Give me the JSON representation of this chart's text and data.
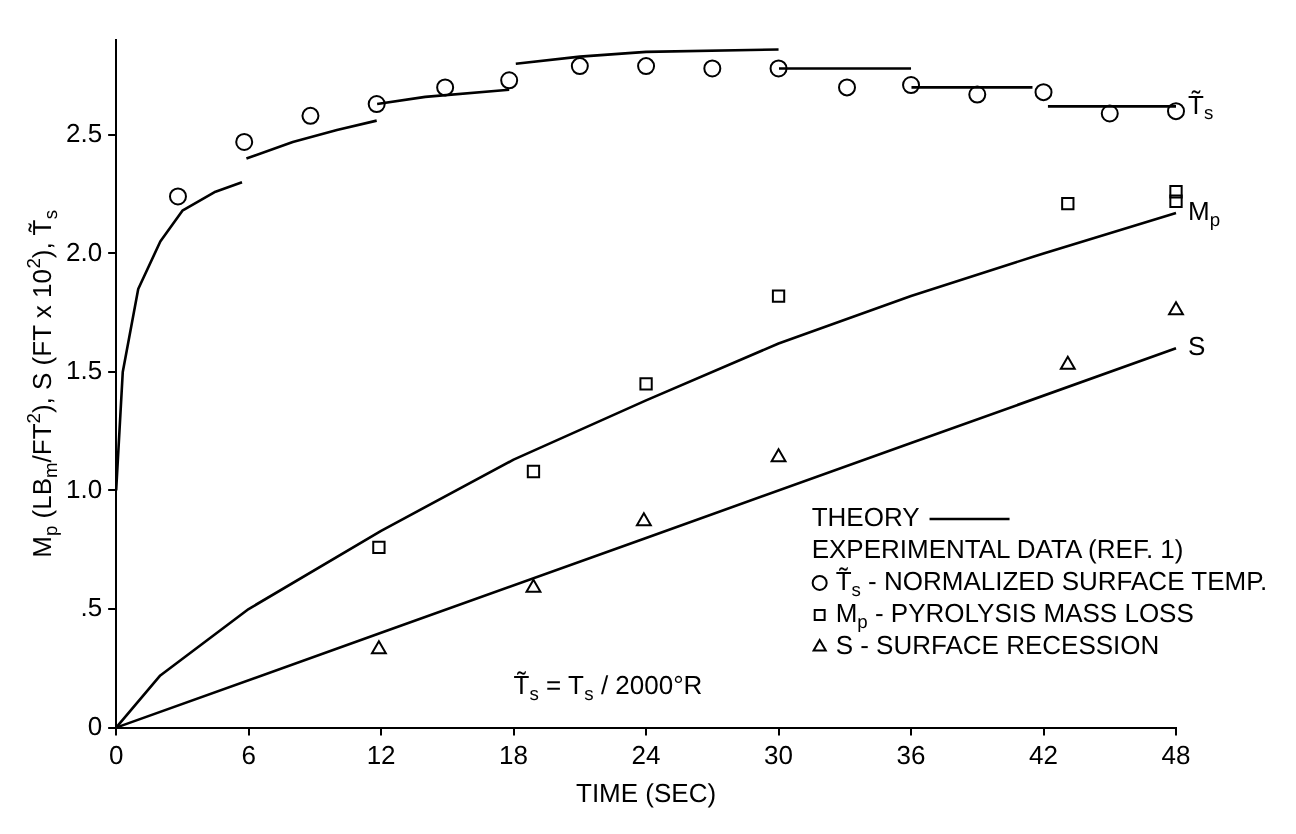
{
  "chart_data": {
    "type": "scatter",
    "xlabel": "TIME (SEC)",
    "ylabel": "M$_{p}$ (LB$_{m}$/FT$^{2}$), S (FT x 10$^{2}$), T̃$_{s}$",
    "legend_title": "EXPERIMENTAL DATA (REF. 1)",
    "xlim": [
      0,
      48
    ],
    "xticks": [
      0,
      6,
      12,
      18,
      24,
      30,
      36,
      42,
      48
    ],
    "ylim": [
      0,
      2.9
    ],
    "yticks": [
      0,
      {
        "value": 0.5,
        "label": ".5"
      },
      {
        "value": 1,
        "label": "1.0"
      },
      1.5,
      {
        "value": 2,
        "label": "2.0"
      },
      2.5
    ],
    "grid": false,
    "legend": "bottom right",
    "series": [
      {
        "type": "line",
        "name": "T̃$_{s}$",
        "color": "#000000",
        "marker": "none",
        "x": [
          0,
          0.3,
          1,
          2,
          3,
          4.5,
          5.7,
          5.8,
          5.9,
          8,
          10,
          11.8,
          11.81,
          11.82,
          14,
          17.8,
          17.95,
          18.1,
          21,
          24,
          30,
          30.01,
          30.02,
          36,
          36.01,
          36.02,
          41.5,
          41.8,
          42.2,
          48
        ],
        "values": [
          1.0,
          1.5,
          1.85,
          2.05,
          2.18,
          2.26,
          2.3,
          null,
          2.4,
          2.47,
          2.52,
          2.56,
          null,
          2.63,
          2.66,
          2.69,
          null,
          2.8,
          2.83,
          2.85,
          2.86,
          null,
          2.78,
          2.78,
          null,
          2.7,
          2.7,
          null,
          2.62,
          2.62
        ]
      },
      {
        "type": "line",
        "name": "M$_{p}$",
        "color": "#000000",
        "marker": "none",
        "x": [
          0,
          2,
          6,
          12,
          18,
          24,
          30,
          36,
          42,
          48
        ],
        "values": [
          0,
          0.22,
          0.5,
          0.83,
          1.13,
          1.38,
          1.62,
          1.82,
          2.0,
          2.17
        ]
      },
      {
        "type": "line",
        "name": "S",
        "color": "#000000",
        "marker": "none",
        "x": [
          0,
          12,
          24,
          36,
          48
        ],
        "values": [
          0,
          0.4,
          0.8,
          1.2,
          1.6
        ]
      },
      {
        "type": "scatter",
        "name": "T̃$_{s}$ - NORMALIZED SURFACE TEMP.",
        "color": "#000000",
        "marker": "circle",
        "x": [
          2.8,
          5.8,
          8.8,
          11.8,
          14.9,
          17.8,
          21,
          24,
          27,
          30,
          33.1,
          36,
          39,
          42,
          45,
          48
        ],
        "values": [
          2.24,
          2.47,
          2.58,
          2.63,
          2.7,
          2.73,
          2.79,
          2.79,
          2.78,
          2.78,
          2.7,
          2.71,
          2.67,
          2.68,
          2.59,
          2.6
        ]
      },
      {
        "type": "scatter",
        "name": "M$_{p}$ - PYROLYSIS MASS LOSS",
        "color": "#000000",
        "marker": "square",
        "x": [
          11.9,
          18.9,
          24,
          30,
          43.1,
          48,
          48
        ],
        "values": [
          0.76,
          1.08,
          1.45,
          1.82,
          2.21,
          2.26,
          2.22
        ]
      },
      {
        "type": "scatter",
        "name": "S - SURFACE RECESSION",
        "color": "#000000",
        "marker": "triangle",
        "x": [
          11.9,
          18.9,
          23.9,
          30,
          43.1,
          48
        ],
        "values": [
          0.33,
          0.59,
          0.87,
          1.14,
          1.53,
          1.76
        ]
      }
    ],
    "annotations": [
      "THEORY",
      "T̃$_{s}$ = T$_{s}$ / 2000°R"
    ]
  }
}
